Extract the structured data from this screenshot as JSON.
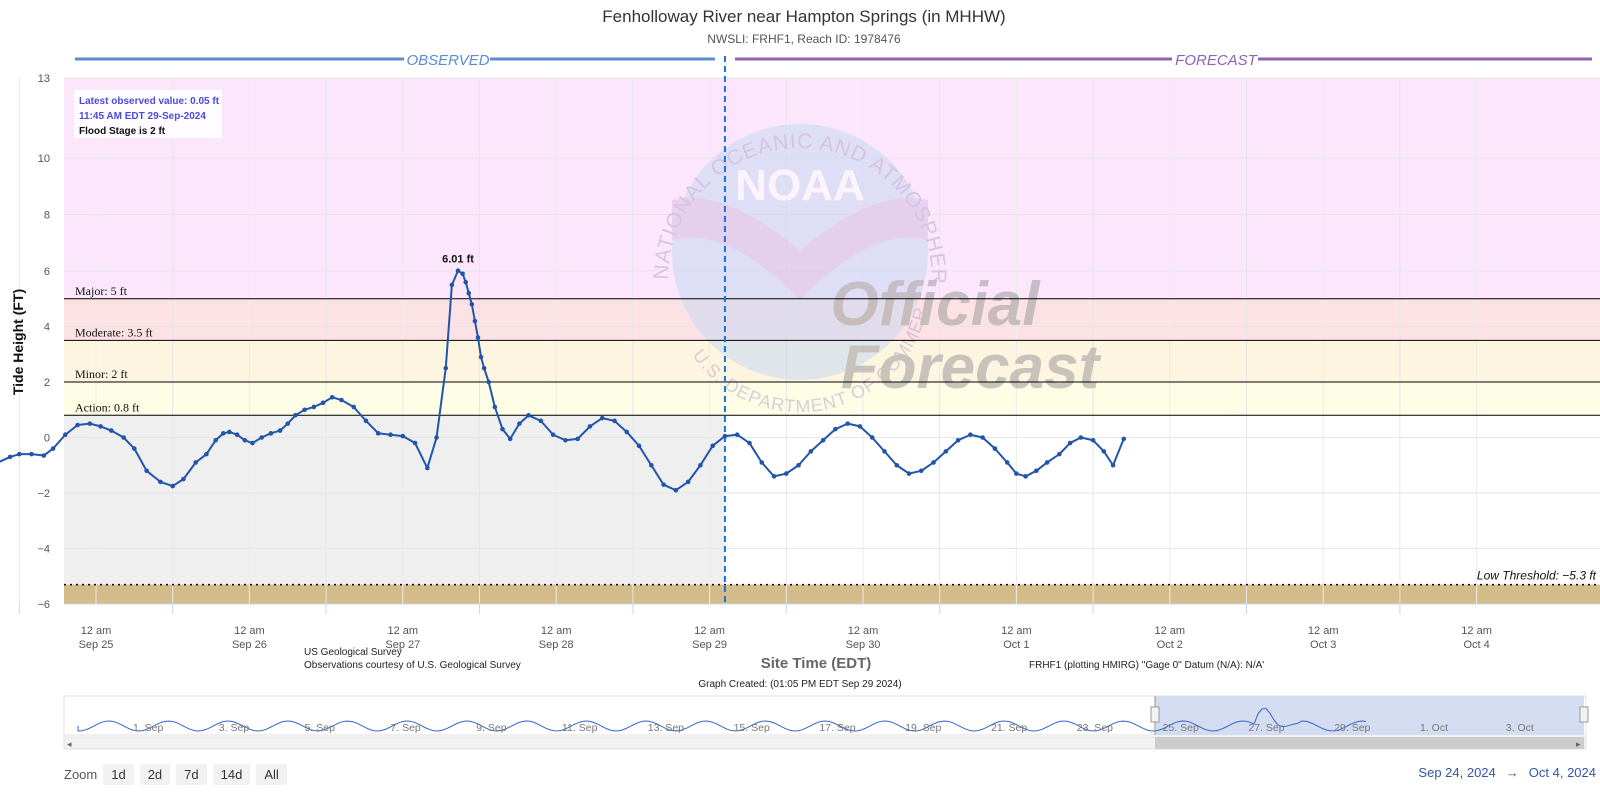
{
  "chart_data": {
    "type": "line",
    "title": "Fenholloway River near Hampton Springs (in MHHW)",
    "subtitle": "NWSLI: FRHF1, Reach ID: 1978476",
    "ylabel": "Tide Height (FT)",
    "xlabel": "Site Time (EDT)",
    "ylim": [
      -6,
      13
    ],
    "yticks": [
      -6,
      -4,
      -2,
      0,
      2,
      4,
      6,
      8,
      10,
      13
    ],
    "observed_label": "OBSERVED",
    "forecast_label": "FORECAST",
    "x_ticks": [
      {
        "line1": "12 am",
        "line2": "Sep 25"
      },
      {
        "line1": "12 am",
        "line2": "Sep 26"
      },
      {
        "line1": "12 am",
        "line2": "Sep 27"
      },
      {
        "line1": "12 am",
        "line2": "Sep 28"
      },
      {
        "line1": "12 am",
        "line2": "Sep 29"
      },
      {
        "line1": "12 am",
        "line2": "Sep 30"
      },
      {
        "line1": "12 am",
        "line2": "Oct 1"
      },
      {
        "line1": "12 am",
        "line2": "Oct 2"
      },
      {
        "line1": "12 am",
        "line2": "Oct 3"
      },
      {
        "line1": "12 am",
        "line2": "Oct 4"
      }
    ],
    "thresholds": [
      {
        "label": "Major: 5 ft",
        "value": 5
      },
      {
        "label": "Moderate: 3.5 ft",
        "value": 3.5
      },
      {
        "label": "Minor: 2 ft",
        "value": 2
      },
      {
        "label": "Action: 0.8 ft",
        "value": 0.8
      }
    ],
    "low_threshold": {
      "label": "Low Threshold: −5.3 ft",
      "value": -5.3
    },
    "peak_label": "6.01 ft",
    "series": [
      {
        "x_days": [
          0.0,
          0.03,
          0.06,
          0.1,
          0.15,
          0.2,
          0.28,
          0.36,
          0.44,
          0.5,
          0.58,
          0.66,
          0.72,
          0.8,
          0.88,
          0.96,
          1.03,
          1.1,
          1.18,
          1.25,
          1.33,
          1.42,
          1.5,
          1.57,
          1.65,
          1.72,
          1.78,
          1.83,
          1.87,
          1.92,
          1.97,
          2.02,
          2.08,
          2.14,
          2.2,
          2.25,
          2.3,
          2.36,
          2.42,
          2.48,
          2.54,
          2.6,
          2.68,
          2.76,
          2.84,
          2.92,
          3.0,
          3.08,
          3.16,
          3.22,
          3.28,
          3.32,
          3.36,
          3.39,
          3.41,
          3.43,
          3.45,
          3.47,
          3.49,
          3.51,
          3.53,
          3.56,
          3.6,
          3.65,
          3.7,
          3.76,
          3.82,
          3.9,
          3.98,
          4.06,
          4.14,
          4.22,
          4.3,
          4.38,
          4.46,
          4.54,
          4.62,
          4.7,
          4.78,
          4.86,
          4.94,
          5.02,
          5.1,
          5.18,
          5.26,
          5.34,
          5.42,
          5.5,
          5.58,
          5.66,
          5.74,
          5.82,
          5.9,
          5.98,
          6.06,
          6.14,
          6.22,
          6.3,
          6.38,
          6.46,
          6.54,
          6.62,
          6.7,
          6.78,
          6.86,
          6.94,
          7.0,
          7.06,
          7.13,
          7.2,
          7.28,
          7.35,
          7.42,
          7.5,
          7.57,
          7.63,
          7.7
        ],
        "y": [
          -2.1,
          -2.3,
          -2.35,
          -2.1,
          -1.85,
          -1.55,
          -1.2,
          -0.9,
          -0.7,
          -0.6,
          -0.6,
          -0.65,
          -0.4,
          0.1,
          0.45,
          0.5,
          0.4,
          0.25,
          0.0,
          -0.4,
          -1.2,
          -1.6,
          -1.75,
          -1.5,
          -0.9,
          -0.6,
          -0.1,
          0.15,
          0.2,
          0.1,
          -0.1,
          -0.2,
          0.0,
          0.15,
          0.25,
          0.5,
          0.8,
          1.0,
          1.1,
          1.25,
          1.45,
          1.35,
          1.1,
          0.6,
          0.15,
          0.1,
          0.05,
          -0.2,
          -1.1,
          0.0,
          2.5,
          5.5,
          6.01,
          5.9,
          5.6,
          5.2,
          4.8,
          4.2,
          3.6,
          2.9,
          2.5,
          2.0,
          1.1,
          0.3,
          -0.05,
          0.5,
          0.8,
          0.6,
          0.1,
          -0.1,
          -0.05,
          0.4,
          0.7,
          0.6,
          0.2,
          -0.3,
          -1.0,
          -1.7,
          -1.9,
          -1.6,
          -1.0,
          -0.3,
          0.05,
          0.1,
          -0.2,
          -0.9,
          -1.4,
          -1.3,
          -1.0,
          -0.5,
          -0.1,
          0.3,
          0.5,
          0.4,
          0.0,
          -0.5,
          -1.0,
          -1.3,
          -1.2,
          -0.9,
          -0.5,
          -0.1,
          0.1,
          0.0,
          -0.4,
          -0.9,
          -1.3,
          -1.4,
          -1.2,
          -0.9,
          -0.6,
          -0.2,
          0.0,
          -0.1,
          -0.5,
          -1.0,
          -0.05
        ],
        "color": "#2255aa"
      }
    ],
    "x_range_days": [
      0,
      9.85
    ],
    "now_day": 5.1,
    "x_origin_label": "Sep 24, 2024",
    "latest": {
      "line1": "Latest observed value: 0.05 ft",
      "line2": "11:45 AM EDT 29-Sep-2024",
      "line3": "Flood Stage is 2 ft"
    },
    "credits": {
      "left1": "US Geological Survey",
      "left2": "Observations courtesy of U.S. Geological Survey",
      "right": "FRHF1 (plotting HMIRG) \"Gage 0\" Datum (N/A): N/A'",
      "created": "Graph Created: (01:05 PM EDT Sep 29 2024)"
    },
    "watermark": {
      "ring_text": "NATIONAL OCEANIC AND ATMOSPHERIC ADMINISTRATION",
      "bottom_text": "U.S. DEPARTMENT OF COMMERCE",
      "logo_text": "NOAA",
      "official": "Official",
      "forecast": "Forecast"
    },
    "navigator_labels": [
      "1. Sep",
      "3. Sep",
      "5. Sep",
      "7. Sep",
      "9. Sep",
      "11. Sep",
      "13. Sep",
      "15. Sep",
      "17. Sep",
      "19. Sep",
      "21. Sep",
      "23. Sep",
      "25. Sep",
      "27. Sep",
      "29. Sep",
      "1. Oct",
      "3. Oct"
    ],
    "colors": {
      "major": "#fbe6fc",
      "major_minor_band": "#fde2e5",
      "moderate": "#fef5e0",
      "minor": "#fefde6",
      "normal": "#efefef",
      "low": "#d4bc8a",
      "observed_line": "#5b8bd0",
      "forecast_line": "#8e63b5",
      "series": "#2255aa"
    }
  },
  "zoom": {
    "label": "Zoom",
    "buttons": [
      "1d",
      "2d",
      "7d",
      "14d",
      "All"
    ]
  },
  "range": {
    "from": "Sep 24, 2024",
    "arrow": "→",
    "to": "Oct 4, 2024"
  }
}
